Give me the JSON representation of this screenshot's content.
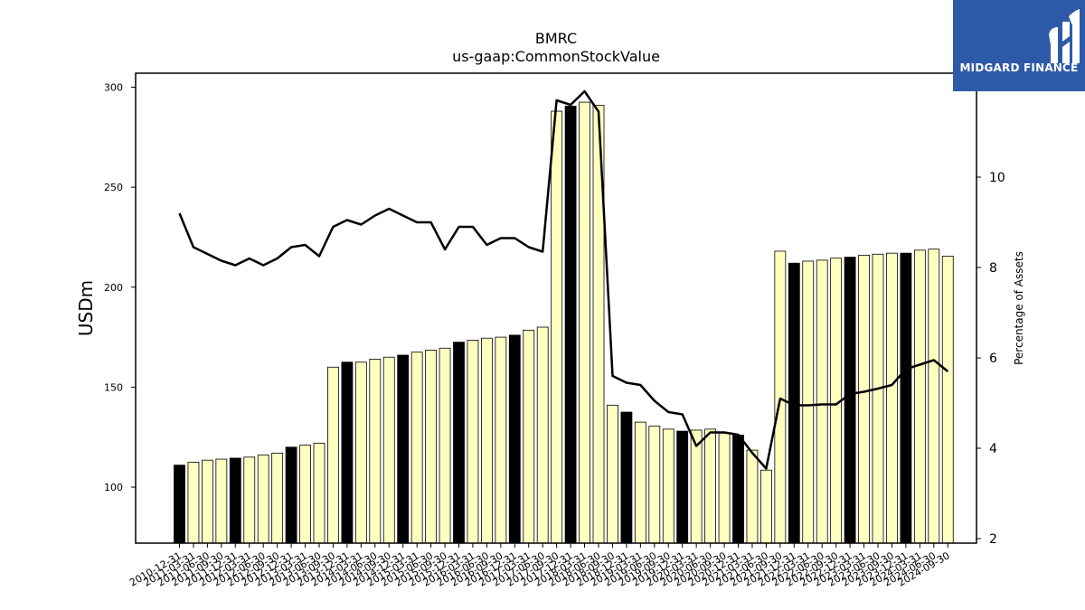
{
  "chart_data": {
    "type": "bar",
    "title": "BMRC",
    "subtitle": "us-gaap:CommonStockValue",
    "ylabel": "USDm",
    "y2label": "Percentage of Assets",
    "ylim": [
      72,
      307
    ],
    "y2lim": [
      1.9,
      12.3
    ],
    "yticks": [
      100,
      150,
      200,
      250,
      300
    ],
    "y2ticks": [
      2,
      4,
      6,
      8,
      10
    ],
    "categories": [
      "2010-12-31",
      "2011-03-31",
      "2011-06-30",
      "2011-09-30",
      "2011-12-31",
      "2012-03-31",
      "2012-06-30",
      "2012-09-30",
      "2012-12-31",
      "2013-03-31",
      "2013-06-30",
      "2013-09-30",
      "2013-12-31",
      "2014-03-31",
      "2014-06-30",
      "2014-09-30",
      "2014-12-31",
      "2015-03-31",
      "2015-06-30",
      "2015-09-30",
      "2015-12-31",
      "2016-03-31",
      "2016-06-30",
      "2016-09-30",
      "2016-12-31",
      "2017-03-31",
      "2017-06-30",
      "2017-09-30",
      "2017-12-31",
      "2018-03-31",
      "2018-06-30",
      "2018-09-30",
      "2018-12-31",
      "2019-03-31",
      "2019-06-30",
      "2019-09-30",
      "2019-12-31",
      "2020-03-31",
      "2020-06-30",
      "2020-09-30",
      "2020-12-31",
      "2021-03-31",
      "2021-06-30",
      "2021-09-30",
      "2021-12-31",
      "2022-03-31",
      "2022-06-30",
      "2022-09-30",
      "2022-12-31",
      "2023-03-31",
      "2023-06-30",
      "2023-09-30",
      "2023-12-31",
      "2024-03-31",
      "2024-06-30",
      "2024-09-30"
    ],
    "series": [
      {
        "name": "",
        "kind": "bar",
        "values": [
          111,
          112.5,
          113.5,
          114,
          114.5,
          115,
          116,
          117,
          120,
          121,
          122,
          160,
          162.5,
          162.5,
          164,
          165,
          166,
          167.5,
          168.5,
          169.5,
          172.5,
          173.5,
          174.5,
          175,
          176,
          178.5,
          180,
          288,
          290.5,
          292.5,
          291,
          141,
          137.5,
          132.5,
          130.5,
          129,
          128,
          128.5,
          129,
          127,
          126,
          118.5,
          108.5,
          218,
          212,
          213,
          213.5,
          214.5,
          215,
          216,
          216.5,
          217,
          217,
          218.5,
          219,
          215.5
        ],
        "year_end": [
          true,
          false,
          false,
          false,
          true,
          false,
          false,
          false,
          true,
          false,
          false,
          false,
          true,
          false,
          false,
          false,
          true,
          false,
          false,
          false,
          true,
          false,
          false,
          false,
          true,
          false,
          false,
          false,
          true,
          false,
          false,
          false,
          true,
          false,
          false,
          false,
          true,
          false,
          false,
          false,
          true,
          false,
          false,
          false,
          true,
          false,
          false,
          false,
          true,
          false,
          false,
          false,
          true,
          false,
          false,
          false
        ],
        "colors": {
          "year_end": "#000000",
          "quarter": "#ffffc0",
          "edge": "#000000"
        }
      },
      {
        "name": "",
        "kind": "line",
        "axis": "right",
        "color": "#000000",
        "values": [
          9.2,
          8.45,
          8.3,
          8.15,
          8.05,
          8.2,
          8.05,
          8.2,
          8.45,
          8.5,
          8.25,
          8.9,
          9.05,
          8.95,
          9.15,
          9.3,
          9.15,
          9.0,
          9.0,
          8.4,
          8.9,
          8.9,
          8.5,
          8.65,
          8.65,
          8.45,
          8.35,
          11.7,
          11.6,
          11.9,
          11.45,
          5.6,
          5.45,
          5.4,
          5.05,
          4.8,
          4.75,
          4.05,
          4.35,
          4.35,
          4.3,
          3.9,
          3.55,
          5.1,
          4.95,
          4.95,
          4.97,
          4.97,
          5.2,
          5.25,
          5.32,
          5.4,
          5.75,
          5.85,
          5.95,
          5.7
        ]
      }
    ]
  },
  "logo": {
    "text": "MIDGARD FINANCE",
    "icon": "midgard-logo-icon"
  }
}
